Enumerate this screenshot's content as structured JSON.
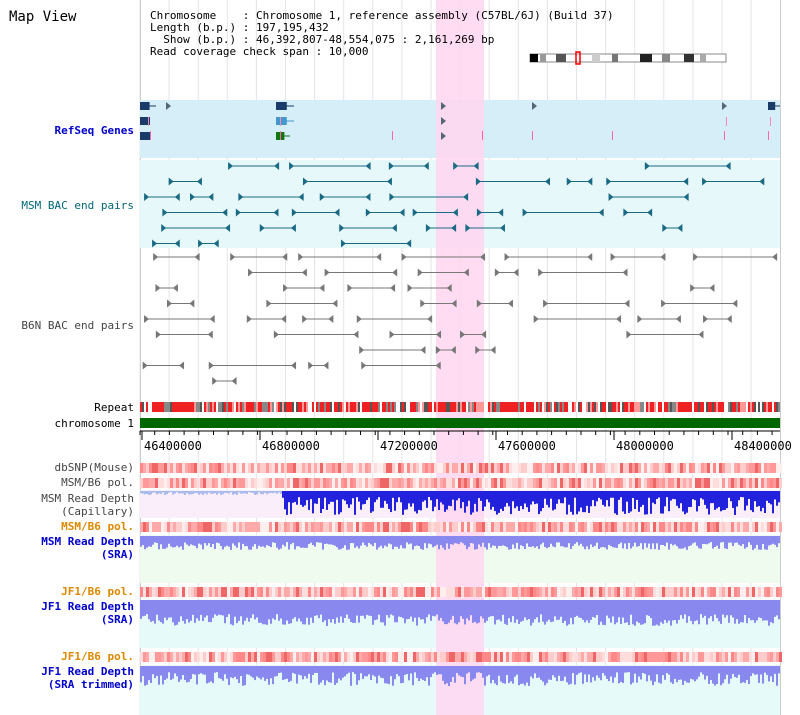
{
  "page_title": "Map View",
  "info": {
    "chromosome_line": "Chromosome    : Chromosome 1, reference assembly (C57BL/6J) (Build 37)",
    "length_line": "Length (b.p.) : 197,195,432",
    "show_line": "  Show (b.p.) : 46,392,807-48,554,075 : 2,161,269 bp",
    "coverage_line": "Read coverage check span : 10,000"
  },
  "tracks": {
    "refseq": {
      "label": "RefSeq Genes",
      "color": "#0000cc"
    },
    "msm_bac": {
      "label": "MSM BAC end pairs",
      "color": "#006677"
    },
    "b6n_bac": {
      "label": "B6N BAC end pairs",
      "color": "#444444"
    },
    "repeat": {
      "label": "Repeat",
      "color": "#000000"
    },
    "chrom": {
      "label": "chromosome 1",
      "color": "#000000"
    },
    "dbsnp": {
      "label": "dbSNP(Mouse)",
      "color": "#444444"
    },
    "msm_b6_pol": {
      "label": "MSM/B6 pol.",
      "color": "#444444"
    },
    "msm_depth_cap": {
      "label1": "MSM Read Depth",
      "label2": "(Capillary)",
      "color": "#444444"
    },
    "msm_b6_pol2": {
      "label": "MSM/B6 pol.",
      "color": "#dd8800"
    },
    "msm_depth_sra": {
      "label1": "MSM Read Depth",
      "label2": "(SRA)",
      "color": "#0000cc"
    },
    "jf1_b6_pol": {
      "label": "JF1/B6 pol.",
      "color": "#dd8800"
    },
    "jf1_depth_sra": {
      "label1": "JF1 Read Depth",
      "label2": "(SRA)",
      "color": "#0000cc"
    },
    "jf1_b6_pol2": {
      "label": "JF1/B6 pol.",
      "color": "#dd8800"
    },
    "jf1_depth_trim": {
      "label1": "JF1 Read Depth",
      "label2": "(SRA trimmed)",
      "color": "#0000cc"
    }
  },
  "axis": {
    "tick_labels": [
      "46400000",
      "46800000",
      "47200000",
      "47600000",
      "48000000",
      "48400000"
    ]
  },
  "colors": {
    "highlight": "#ffd6f0",
    "refseq_bg": "#d6eef8",
    "msm_bg": "#e6f8fa",
    "chrom": "#006600",
    "repeat_red": "#ee2222",
    "depth_blue": "#2222dd",
    "depth_light": "#8888ee"
  }
}
